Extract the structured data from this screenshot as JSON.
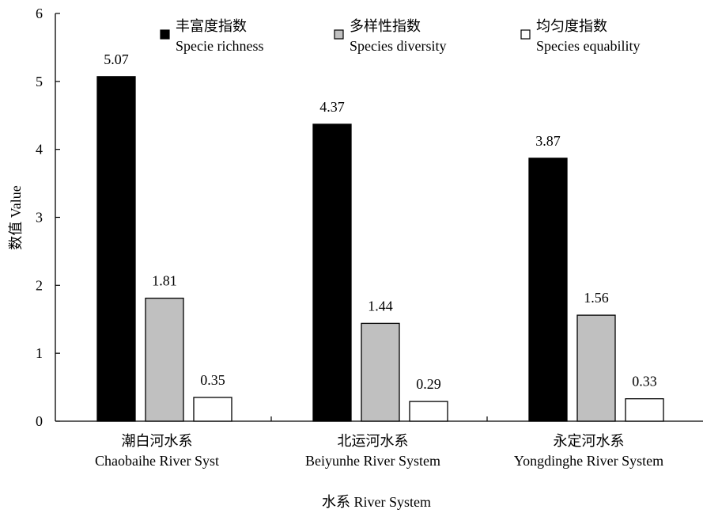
{
  "chart_data": {
    "type": "bar",
    "categories": [
      [
        "潮白河水系",
        "Chaobaihe River Syst"
      ],
      [
        "北运河水系",
        "Beiyunhe River System"
      ],
      [
        "永定河水系",
        "Yongdinghe River System"
      ]
    ],
    "series": [
      {
        "name": [
          "丰富度指数",
          "Specie richness"
        ],
        "color": "#000000",
        "values": [
          5.07,
          4.37,
          3.87
        ]
      },
      {
        "name": [
          "多样性指数",
          "Species diversity"
        ],
        "color": "#c0c0c0",
        "values": [
          1.81,
          1.44,
          1.56
        ]
      },
      {
        "name": [
          "均匀度指数",
          "Species equability"
        ],
        "color": "#ffffff",
        "values": [
          0.35,
          0.29,
          0.33
        ]
      }
    ],
    "data_labels": [
      [
        "5.07",
        "4.37",
        "3.87"
      ],
      [
        "1.81",
        "1.44",
        "1.56"
      ],
      [
        "0.35",
        "0.29",
        "0.33"
      ]
    ],
    "xlabel": "水系 River System",
    "ylabel": "数值 Value",
    "ylim": [
      0,
      6
    ],
    "yticks": [
      "0",
      "1",
      "2",
      "3",
      "4",
      "5",
      "6"
    ],
    "grid": false,
    "legend": "top"
  }
}
